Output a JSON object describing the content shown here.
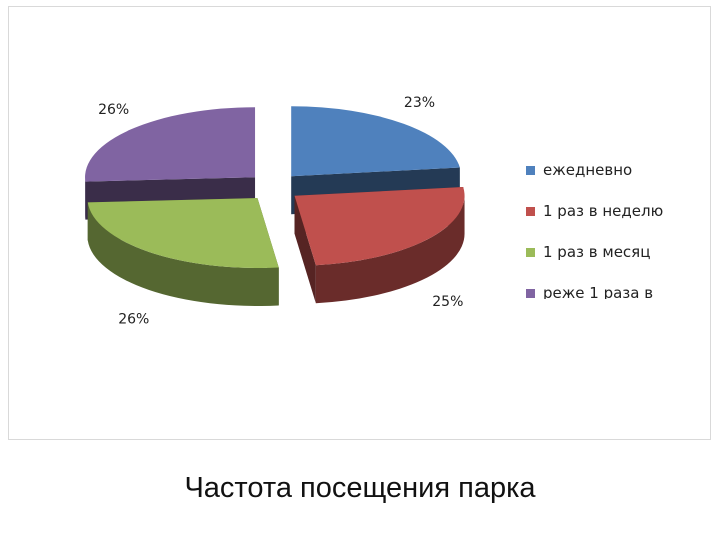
{
  "slide": {
    "title": "Частота посещения парка"
  },
  "chart_data": {
    "type": "pie",
    "style": "exploded 3D pie",
    "legend_placement": "right",
    "series": [
      {
        "name": "ежедневно",
        "value": 23,
        "label": "23%",
        "color": "#4F81BD"
      },
      {
        "name": "1 раз в неделю",
        "value": 25,
        "label": "25%",
        "color": "#C0504D"
      },
      {
        "name": "1 раз в месяц",
        "value": 26,
        "label": "26%",
        "color": "#9BBB59"
      },
      {
        "name": "реже 1 раза в",
        "value": 26,
        "label": "26%",
        "color": "#8064A2"
      }
    ]
  }
}
